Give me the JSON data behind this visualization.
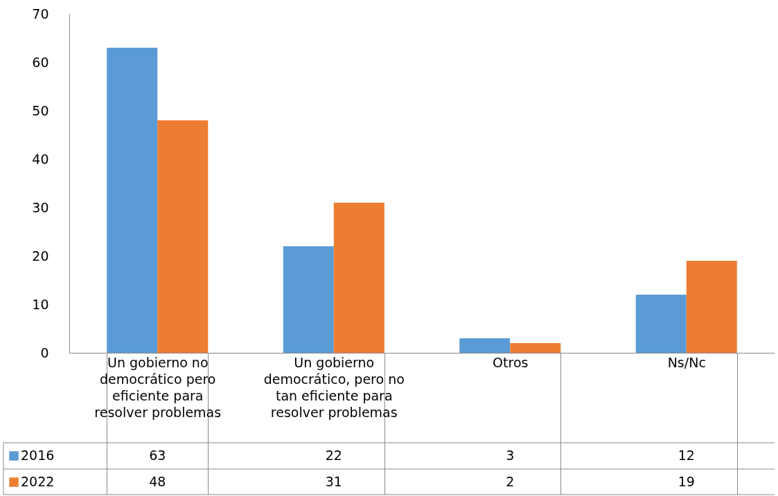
{
  "chart_data": {
    "type": "bar",
    "categories": [
      "Un gobierno no democrático pero eficiente para resolver problemas",
      "Un gobierno democrático, pero no tan eficiente para resolver problemas",
      "Otros",
      "Ns/Nc"
    ],
    "series": [
      {
        "name": "2016",
        "color": "#5b9bd5",
        "values": [
          63,
          22,
          3,
          12
        ]
      },
      {
        "name": "2022",
        "color": "#ed7d31",
        "values": [
          48,
          31,
          2,
          19
        ]
      }
    ],
    "ylim": [
      0,
      70
    ],
    "yticks": [
      0,
      10,
      20,
      30,
      40,
      50,
      60,
      70
    ],
    "grid": false,
    "legend": "bottom left",
    "data_labels": true
  }
}
